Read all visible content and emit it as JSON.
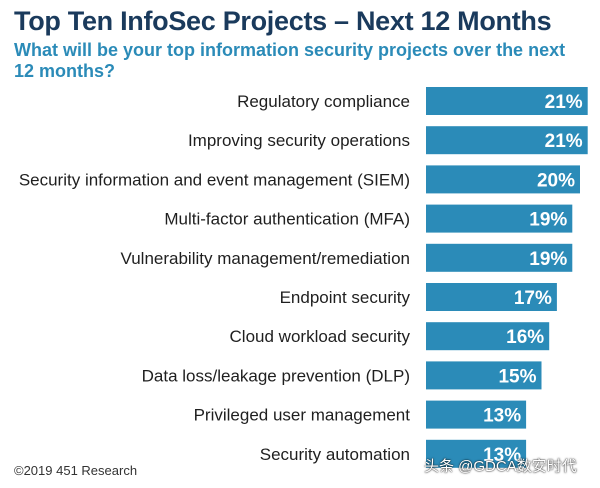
{
  "header": {
    "title": "Top Ten InfoSec Projects – Next 12 Months",
    "subtitle": "What will be your top information security projects over the next 12 months?"
  },
  "chart_data": {
    "type": "bar",
    "orientation": "horizontal",
    "categories": [
      "Regulatory compliance",
      "Improving security operations",
      "Security information and event management (SIEM)",
      "Multi-factor authentication (MFA)",
      "Vulnerability management/remediation",
      "Endpoint security",
      "Cloud workload security",
      "Data loss/leakage prevention (DLP)",
      "Privileged user management",
      "Security automation"
    ],
    "values": [
      21,
      21,
      20,
      19,
      19,
      17,
      16,
      15,
      13,
      13
    ],
    "value_labels": [
      "21%",
      "21%",
      "20%",
      "19%",
      "19%",
      "17%",
      "16%",
      "15%",
      "13%",
      "13%"
    ],
    "bar_color": "#2b8bb8",
    "grid": false,
    "legend": "none"
  },
  "footer": {
    "copyright": "©2019 451 Research",
    "watermark": "头条 @GDCA数安时代"
  }
}
